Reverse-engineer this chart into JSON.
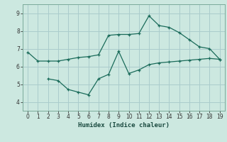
{
  "xlabel": "Humidex (Indice chaleur)",
  "bg_color": "#cce8e0",
  "grid_color": "#aacccc",
  "line_color": "#1a6b5a",
  "xlim": [
    -0.5,
    19.5
  ],
  "ylim": [
    3.5,
    9.5
  ],
  "xticks": [
    0,
    1,
    2,
    3,
    4,
    5,
    6,
    7,
    8,
    9,
    10,
    11,
    12,
    13,
    14,
    15,
    16,
    17,
    18,
    19
  ],
  "yticks": [
    4,
    5,
    6,
    7,
    8,
    9
  ],
  "line1_x": [
    0,
    1,
    2,
    3,
    4,
    5,
    6,
    7,
    8,
    9,
    10,
    11,
    12,
    13,
    14,
    15,
    16,
    17,
    18,
    19
  ],
  "line1_y": [
    6.8,
    6.3,
    6.3,
    6.3,
    6.4,
    6.5,
    6.55,
    6.65,
    7.75,
    7.8,
    7.8,
    7.85,
    8.85,
    8.3,
    8.2,
    7.9,
    7.5,
    7.1,
    7.0,
    6.4
  ],
  "line2_x": [
    2,
    3,
    4,
    5,
    6,
    7,
    8,
    9,
    10,
    11,
    12,
    13,
    14,
    15,
    16,
    17,
    18,
    19
  ],
  "line2_y": [
    5.3,
    5.2,
    4.7,
    4.55,
    4.4,
    5.3,
    5.55,
    6.85,
    5.6,
    5.8,
    6.1,
    6.2,
    6.25,
    6.3,
    6.35,
    6.4,
    6.45,
    6.4
  ]
}
